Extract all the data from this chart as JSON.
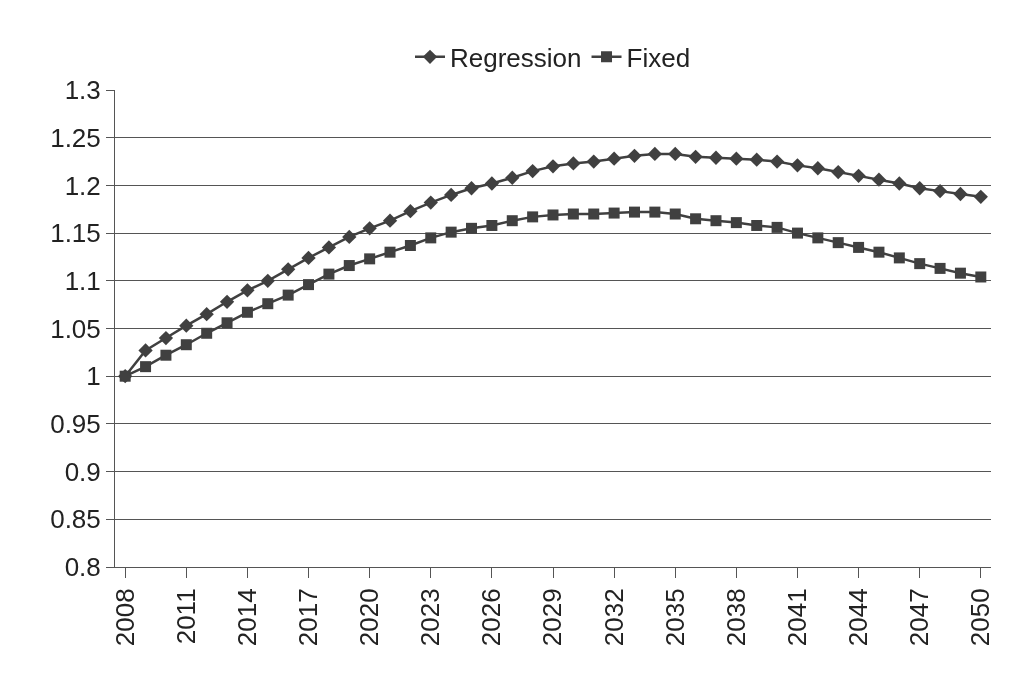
{
  "chart_data": {
    "type": "line",
    "categories": [
      "2008",
      null,
      null,
      "2011",
      null,
      null,
      "2014",
      null,
      null,
      "2017",
      null,
      null,
      "2020",
      null,
      null,
      "2023",
      null,
      null,
      "2026",
      null,
      null,
      "2029",
      null,
      null,
      "2032",
      null,
      null,
      "2035",
      null,
      null,
      "2038",
      null,
      null,
      "2041",
      null,
      null,
      "2044",
      null,
      null,
      "2047",
      null,
      null,
      "2050"
    ],
    "series": [
      {
        "name": "Regression",
        "color": "#404040",
        "marker": "diamond",
        "values": [
          1.0,
          1.027,
          1.04,
          1.053,
          1.065,
          1.078,
          1.09,
          1.1,
          1.112,
          1.124,
          1.135,
          1.146,
          1.155,
          1.163,
          1.173,
          1.182,
          1.19,
          1.197,
          1.202,
          1.208,
          1.215,
          1.22,
          1.223,
          1.225,
          1.228,
          1.231,
          1.233,
          1.233,
          1.23,
          1.229,
          1.228,
          1.227,
          1.225,
          1.221,
          1.218,
          1.214,
          1.21,
          1.206,
          1.202,
          1.197,
          1.194,
          1.191,
          1.188
        ]
      },
      {
        "name": "Fixed",
        "color": "#404040",
        "marker": "square",
        "values": [
          1.0,
          1.01,
          1.022,
          1.033,
          1.045,
          1.056,
          1.067,
          1.076,
          1.085,
          1.096,
          1.107,
          1.116,
          1.123,
          1.13,
          1.137,
          1.145,
          1.151,
          1.155,
          1.158,
          1.163,
          1.167,
          1.169,
          1.17,
          1.17,
          1.171,
          1.172,
          1.172,
          1.17,
          1.165,
          1.163,
          1.161,
          1.158,
          1.156,
          1.15,
          1.145,
          1.14,
          1.135,
          1.13,
          1.124,
          1.118,
          1.113,
          1.108,
          1.104
        ]
      }
    ],
    "ylim": [
      0.8,
      1.3
    ],
    "yticks": [
      0.8,
      0.85,
      0.9,
      0.95,
      1,
      1.05,
      1.1,
      1.15,
      1.2,
      1.25,
      1.3
    ],
    "grid": "y",
    "legend": "top",
    "line_style": "solid"
  }
}
